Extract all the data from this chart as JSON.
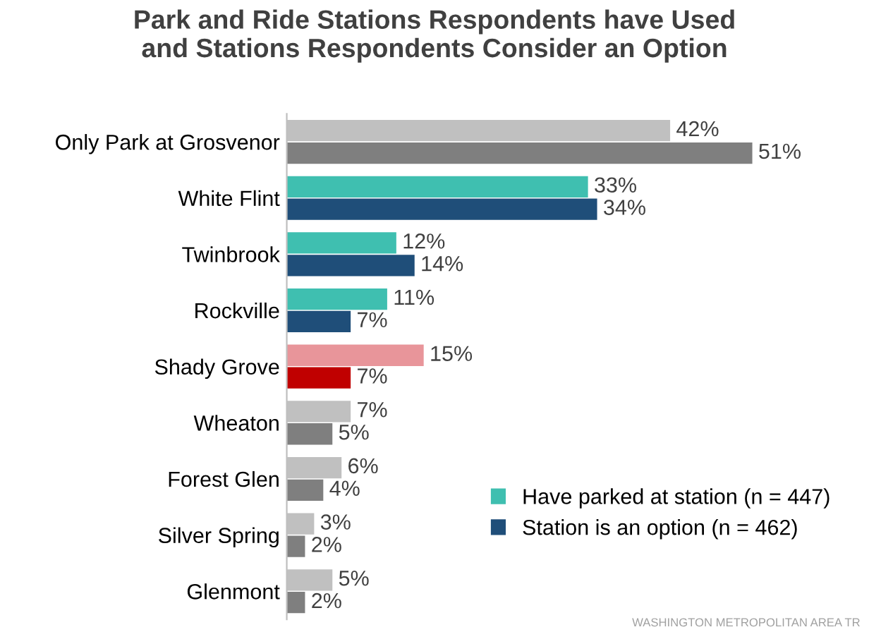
{
  "chart_data": {
    "type": "bar",
    "orientation": "horizontal",
    "title": "Park and Ride Stations Respondents have Used\nand Stations Respondents Consider an Option",
    "categories": [
      "Only Park at Grosvenor",
      "White Flint",
      "Twinbrook",
      "Rockville",
      "Shady Grove",
      "Wheaton",
      "Forest Glen",
      "Silver Spring",
      "Glenmont"
    ],
    "series": [
      {
        "name": "Have parked at station (n = 447)",
        "color": "#3fbfb0",
        "colors": [
          "#c0c0c0",
          "#3fbfb0",
          "#3fbfb0",
          "#3fbfb0",
          "#e8959a",
          "#c0c0c0",
          "#c0c0c0",
          "#c0c0c0",
          "#c0c0c0"
        ],
        "values": [
          42,
          33,
          12,
          11,
          15,
          7,
          6,
          3,
          5
        ],
        "value_labels": [
          "42%",
          "33%",
          "12%",
          "11%",
          "15%",
          "7%",
          "6%",
          "3%",
          "5%"
        ]
      },
      {
        "name": "Station is an option (n = 462)",
        "color": "#1f4e79",
        "colors": [
          "#7f7f7f",
          "#1f4e79",
          "#1f4e79",
          "#1f4e79",
          "#c00000",
          "#7f7f7f",
          "#7f7f7f",
          "#7f7f7f",
          "#7f7f7f"
        ],
        "values": [
          51,
          34,
          14,
          7,
          7,
          5,
          4,
          2,
          2
        ],
        "value_labels": [
          "51%",
          "34%",
          "14%",
          "7%",
          "7%",
          "5%",
          "4%",
          "2%",
          "2%"
        ]
      }
    ],
    "legend": "bottom right",
    "grid": false,
    "annotations": [
      "WASHINGTON METROPOLITAN AREA TR"
    ]
  }
}
